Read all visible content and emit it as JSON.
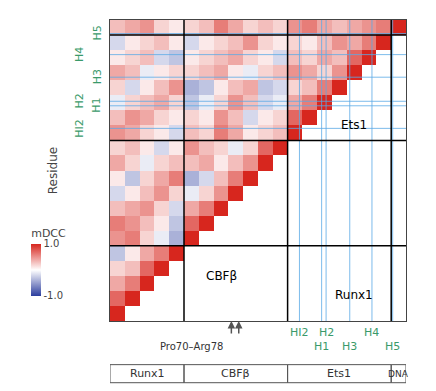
{
  "chart_data": {
    "type": "heatmap",
    "y_label": "Residue",
    "xlim": [
      -0.5,
      19.5
    ],
    "ylim": [
      -0.5,
      19.5
    ],
    "tick_labels": false,
    "cells": [
      [
        1.0
      ],
      [
        0.7,
        1.0
      ],
      [
        0.4,
        0.6,
        1.0
      ],
      [
        0.2,
        0.3,
        0.7,
        1.0
      ],
      [
        -0.3,
        0.1,
        0.4,
        0.6,
        1.0
      ],
      [
        0.5,
        0.6,
        0.2,
        -0.1,
        -0.4,
        1.0
      ],
      [
        0.6,
        0.5,
        0.3,
        0.1,
        -0.3,
        0.7,
        1.0
      ],
      [
        0.3,
        0.4,
        0.5,
        0.2,
        -0.2,
        0.4,
        0.6,
        1.0
      ],
      [
        -0.2,
        0.1,
        0.3,
        0.5,
        0.2,
        -0.1,
        0.2,
        0.5,
        1.0
      ],
      [
        0.1,
        -0.3,
        0.2,
        0.4,
        0.6,
        -0.4,
        -0.2,
        0.3,
        0.6,
        1.0
      ],
      [
        0.4,
        0.2,
        -0.1,
        0.2,
        0.3,
        0.3,
        0.4,
        0.1,
        0.3,
        0.5,
        1.0
      ],
      [
        0.2,
        0.3,
        0.1,
        -0.2,
        0.1,
        0.5,
        0.3,
        0.2,
        -0.1,
        0.2,
        0.7,
        1.0
      ],
      [
        0.5,
        0.4,
        0.2,
        0.1,
        -0.2,
        0.3,
        0.2,
        0.6,
        0.4,
        0.1,
        0.2,
        0.3,
        1.0
      ],
      [
        0.3,
        0.5,
        0.4,
        0.2,
        0.1,
        0.2,
        0.1,
        0.5,
        0.3,
        -0.2,
        0.1,
        0.2,
        0.7,
        1.0
      ],
      [
        -0.1,
        0.2,
        0.3,
        0.4,
        0.2,
        -0.3,
        -0.1,
        0.2,
        0.5,
        0.3,
        -0.2,
        -0.1,
        0.4,
        0.6,
        1.0
      ],
      [
        0.2,
        -0.2,
        0.1,
        0.3,
        0.5,
        -0.4,
        -0.3,
        0.1,
        0.3,
        0.4,
        -0.3,
        -0.2,
        0.2,
        0.3,
        0.6,
        1.0
      ],
      [
        0.4,
        0.3,
        -0.1,
        0.1,
        0.2,
        0.2,
        0.3,
        0.4,
        0.1,
        -0.1,
        0.2,
        0.3,
        0.5,
        0.4,
        0.2,
        0.5,
        1.0
      ],
      [
        0.1,
        0.2,
        0.3,
        -0.2,
        -0.3,
        0.1,
        0.2,
        0.3,
        0.4,
        0.2,
        0.1,
        -0.2,
        0.3,
        0.2,
        0.4,
        0.3,
        0.7,
        1.0
      ],
      [
        -0.2,
        0.1,
        0.2,
        0.3,
        0.1,
        -0.2,
        0.1,
        0.2,
        0.3,
        0.5,
        0.2,
        0.1,
        0.2,
        0.1,
        0.3,
        0.5,
        0.4,
        0.6,
        1.0
      ],
      [
        0.3,
        0.4,
        0.5,
        0.2,
        0.1,
        0.2,
        0.3,
        0.6,
        0.4,
        0.2,
        0.3,
        0.2,
        0.5,
        0.6,
        0.4,
        0.3,
        0.4,
        0.5,
        0.6,
        1.0
      ]
    ],
    "colorbar": {
      "title": "mDCC",
      "range": [
        -1,
        1
      ],
      "ticks": [
        {
          "value": 1,
          "label": "1.0"
        },
        {
          "value": -1,
          "label": "-1.0"
        }
      ]
    },
    "segments": [
      {
        "label": "Runx1",
        "start": 0,
        "end": 5
      },
      {
        "label": "CBFβ",
        "start": 5,
        "end": 12
      },
      {
        "label": "Ets1",
        "start": 12,
        "end": 19
      },
      {
        "label": "DNA",
        "start": 19,
        "end": 20
      }
    ],
    "helices": [
      {
        "label": "HI2",
        "position": 12.3
      },
      {
        "label": "H1",
        "position": 13.8
      },
      {
        "label": "H2",
        "position": 14.1
      },
      {
        "label": "H3",
        "position": 15.7
      },
      {
        "label": "H4",
        "position": 17.2
      },
      {
        "label": "H5",
        "position": 18.6
      }
    ],
    "residue_marks": {
      "label": "Pro70–Arg78",
      "positions": [
        7.7,
        8.2
      ]
    },
    "annotations": [
      "Ets1",
      "CBFβ",
      "Runx1"
    ]
  }
}
